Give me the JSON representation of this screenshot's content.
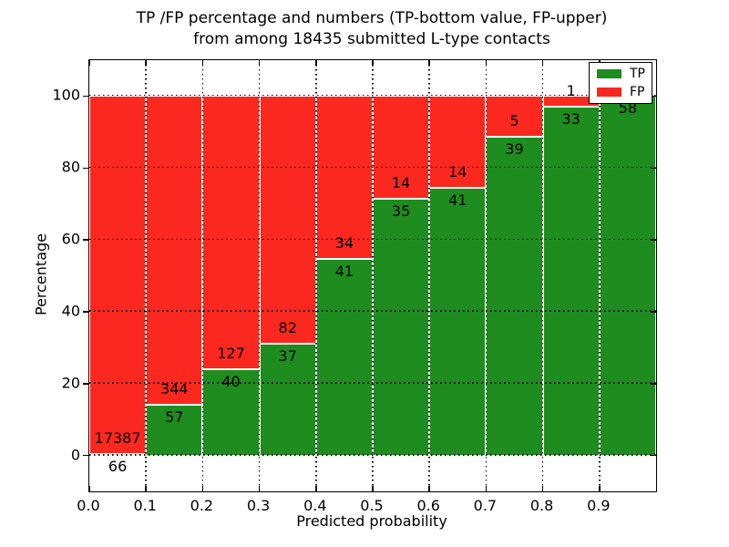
{
  "title": {
    "line1": "TP /FP percentage and numbers (TP-bottom value, FP-upper)",
    "line2": "from among 18435 submitted L-type contacts"
  },
  "axes": {
    "xlabel": "Predicted probability",
    "ylabel": "Percentage",
    "xtick_labels": [
      "0.0",
      "0.1",
      "0.2",
      "0.3",
      "0.4",
      "0.5",
      "0.6",
      "0.7",
      "0.8",
      "0.9"
    ],
    "ytick_labels": [
      "0",
      "20",
      "40",
      "60",
      "80",
      "100"
    ],
    "ytick_values": [
      0,
      20,
      40,
      60,
      80,
      100
    ]
  },
  "legend": {
    "items": [
      {
        "label": "TP",
        "color": "#1e8c1e"
      },
      {
        "label": "FP",
        "color": "#fa281e"
      }
    ],
    "position": "upper right"
  },
  "colors": {
    "tp": "#1e8c1e",
    "fp": "#fa281e",
    "grid": "#000000",
    "background": "#ffffff"
  },
  "chart_data": {
    "type": "bar",
    "stacked": true,
    "normalized": "percent",
    "title": "TP /FP percentage and numbers (TP-bottom value, FP-upper) from among 18435 submitted L-type contacts",
    "xlabel": "Predicted probability",
    "ylabel": "Percentage",
    "xlim": [
      0.0,
      1.0
    ],
    "ylim": [
      -10,
      110
    ],
    "grid": true,
    "legend_position": "upper right",
    "bin_width": 0.1,
    "bin_starts": [
      0.0,
      0.1,
      0.2,
      0.3,
      0.4,
      0.5,
      0.6,
      0.7,
      0.8,
      0.9
    ],
    "categories": [
      "0.0-0.1",
      "0.1-0.2",
      "0.2-0.3",
      "0.3-0.4",
      "0.4-0.5",
      "0.5-0.6",
      "0.6-0.7",
      "0.7-0.8",
      "0.8-0.9",
      "0.9-1.0"
    ],
    "series": [
      {
        "name": "TP",
        "color": "#1e8c1e",
        "counts": [
          66,
          57,
          40,
          37,
          41,
          35,
          41,
          39,
          33,
          58
        ]
      },
      {
        "name": "FP",
        "color": "#fa281e",
        "counts": [
          17387,
          344,
          127,
          82,
          34,
          14,
          14,
          5,
          1,
          0
        ]
      }
    ],
    "tp_percent": [
      0.38,
      14.21,
      23.95,
      31.09,
      54.67,
      71.43,
      74.55,
      88.64,
      97.06,
      100.0
    ],
    "bar_labels": [
      {
        "tp": "66",
        "fp": "17387"
      },
      {
        "tp": "57",
        "fp": "344"
      },
      {
        "tp": "40",
        "fp": "127"
      },
      {
        "tp": "37",
        "fp": "82"
      },
      {
        "tp": "41",
        "fp": "34"
      },
      {
        "tp": "35",
        "fp": "14"
      },
      {
        "tp": "41",
        "fp": "14"
      },
      {
        "tp": "39",
        "fp": "5"
      },
      {
        "tp": "33",
        "fp": "1"
      },
      {
        "tp": "58",
        "fp": null
      }
    ]
  }
}
